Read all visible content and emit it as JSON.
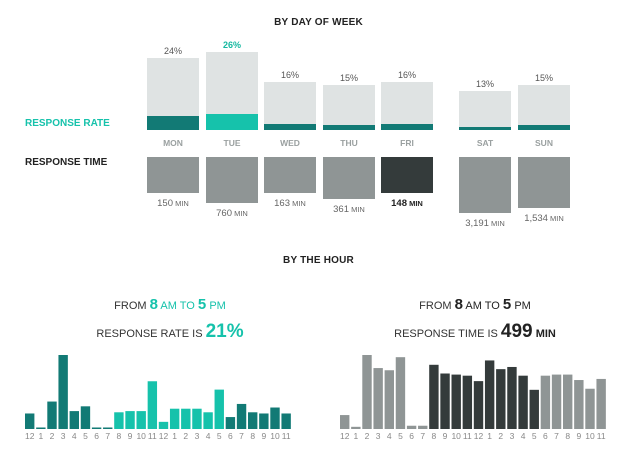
{
  "colors": {
    "teal_dark": "#127a75",
    "teal_light": "#16c2ab",
    "rate_bg": "#dfe3e3",
    "time_gray": "#8f9595",
    "time_dark": "#343b3b",
    "text_dark": "#222222",
    "text_gray": "#9aa0a0"
  },
  "week": {
    "title": "BY DAY OF WEEK",
    "rate_label": "RESPONSE RATE",
    "time_label": "RESPONSE TIME",
    "days": [
      {
        "name": "MON",
        "pct": "24%",
        "time": "150",
        "unit": "MIN"
      },
      {
        "name": "TUE",
        "pct": "26%",
        "time": "760",
        "unit": "MIN"
      },
      {
        "name": "WED",
        "pct": "16%",
        "time": "163",
        "unit": "MIN"
      },
      {
        "name": "THU",
        "pct": "15%",
        "time": "361",
        "unit": "MIN"
      },
      {
        "name": "FRI",
        "pct": "16%",
        "time": "148",
        "unit": "MIN"
      },
      {
        "name": "SAT",
        "pct": "13%",
        "time": "3,191",
        "unit": "MIN"
      },
      {
        "name": "SUN",
        "pct": "15%",
        "time": "1,534",
        "unit": "MIN"
      }
    ]
  },
  "hour": {
    "title": "BY THE HOUR",
    "left": {
      "from": "FROM",
      "start": "8",
      "start_unit": "AM TO",
      "end": "5",
      "end_unit": "PM",
      "stat_label": "RESPONSE RATE IS",
      "stat_value": "21%"
    },
    "right": {
      "from": "FROM",
      "start": "8",
      "start_unit": "AM TO",
      "end": "5",
      "end_unit": "PM",
      "stat_label": "RESPONSE TIME IS",
      "stat_value": "499",
      "stat_unit": "MIN"
    },
    "tick_labels": [
      "12",
      "1",
      "2",
      "3",
      "4",
      "5",
      "6",
      "7",
      "8",
      "9",
      "10",
      "11",
      "12",
      "1",
      "2",
      "3",
      "4",
      "5",
      "6",
      "7",
      "8",
      "9",
      "10",
      "11"
    ]
  },
  "chart_data": [
    {
      "type": "bar",
      "title": "BY DAY OF WEEK — RESPONSE RATE",
      "categories": [
        "MON",
        "TUE",
        "WED",
        "THU",
        "FRI",
        "SAT",
        "SUN"
      ],
      "values": [
        24,
        26,
        16,
        15,
        16,
        13,
        15
      ],
      "highlight": "TUE"
    },
    {
      "type": "bar",
      "title": "BY DAY OF WEEK — RESPONSE TIME",
      "categories": [
        "MON",
        "TUE",
        "WED",
        "THU",
        "FRI",
        "SAT",
        "SUN"
      ],
      "values": [
        150,
        760,
        163,
        361,
        148,
        3191,
        1534
      ],
      "highlight": "FRI"
    },
    {
      "type": "bar",
      "title": "BY THE HOUR — RESPONSE RATE",
      "categories": [
        "12",
        "1",
        "2",
        "3",
        "4",
        "5",
        "6",
        "7",
        "8",
        "9",
        "10",
        "11",
        "12",
        "1",
        "2",
        "3",
        "4",
        "5",
        "6",
        "7",
        "8",
        "9",
        "10",
        "11"
      ],
      "values": [
        13,
        1,
        23,
        62,
        15,
        19,
        1,
        1,
        14,
        15,
        15,
        40,
        6,
        17,
        17,
        17,
        14,
        33,
        10,
        21,
        14,
        13,
        18,
        13
      ],
      "highlight_range": [
        "8 AM",
        "5 PM"
      ]
    },
    {
      "type": "bar",
      "title": "BY THE HOUR — RESPONSE TIME",
      "categories": [
        "12",
        "1",
        "2",
        "3",
        "4",
        "5",
        "6",
        "7",
        "8",
        "9",
        "10",
        "11",
        "12",
        "1",
        "2",
        "3",
        "4",
        "5",
        "6",
        "7",
        "8",
        "9",
        "10",
        "11"
      ],
      "values": [
        640,
        100,
        3400,
        2800,
        2700,
        3300,
        150,
        150,
        2950,
        2550,
        2500,
        2450,
        2200,
        3150,
        2750,
        2850,
        2450,
        1800,
        2450,
        2500,
        2500,
        2250,
        1850,
        2300
      ],
      "highlight_range": [
        "8 AM",
        "5 PM"
      ]
    }
  ]
}
